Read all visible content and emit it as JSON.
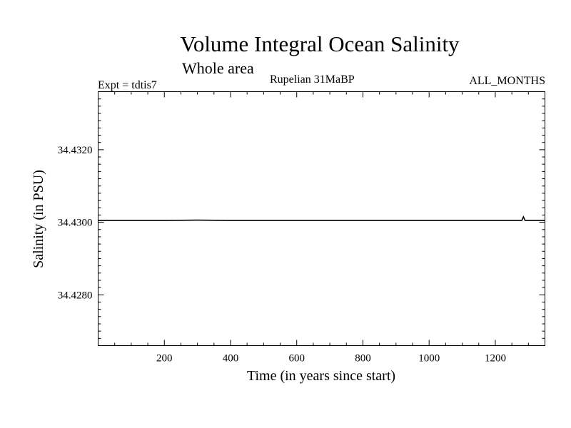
{
  "chart_data": {
    "type": "line",
    "title": "Volume Integral Ocean Salinity",
    "subtitle": "Whole area",
    "annotations": {
      "experiment": "Expt = tdtis7",
      "period": "Rupelian  31MaBP",
      "months": "ALL_MONTHS"
    },
    "xlabel": "Time (in years since start)",
    "ylabel": "Salinity (in PSU)",
    "xlim": [
      0,
      1350
    ],
    "ylim": [
      34.4266,
      34.4336
    ],
    "x_ticks": [
      200,
      400,
      600,
      800,
      1000,
      1200
    ],
    "x_tick_labels": [
      "200",
      "400",
      "600",
      "800",
      "1000",
      "1200"
    ],
    "y_ticks": [
      34.428,
      34.43,
      34.432
    ],
    "y_tick_labels": [
      "34.4280",
      "34.4300",
      "34.4320"
    ],
    "grid": false,
    "series": [
      {
        "x": [
          0,
          100,
          200,
          300,
          400,
          500,
          600,
          700,
          800,
          900,
          1000,
          1100,
          1200,
          1280,
          1285,
          1290,
          1300,
          1350
        ],
        "values": [
          34.43005,
          34.43005,
          34.43005,
          34.43006,
          34.43005,
          34.43005,
          34.43005,
          34.43005,
          34.43005,
          34.43005,
          34.43005,
          34.43005,
          34.43005,
          34.43005,
          34.43015,
          34.43005,
          34.43005,
          34.43005
        ]
      }
    ]
  }
}
